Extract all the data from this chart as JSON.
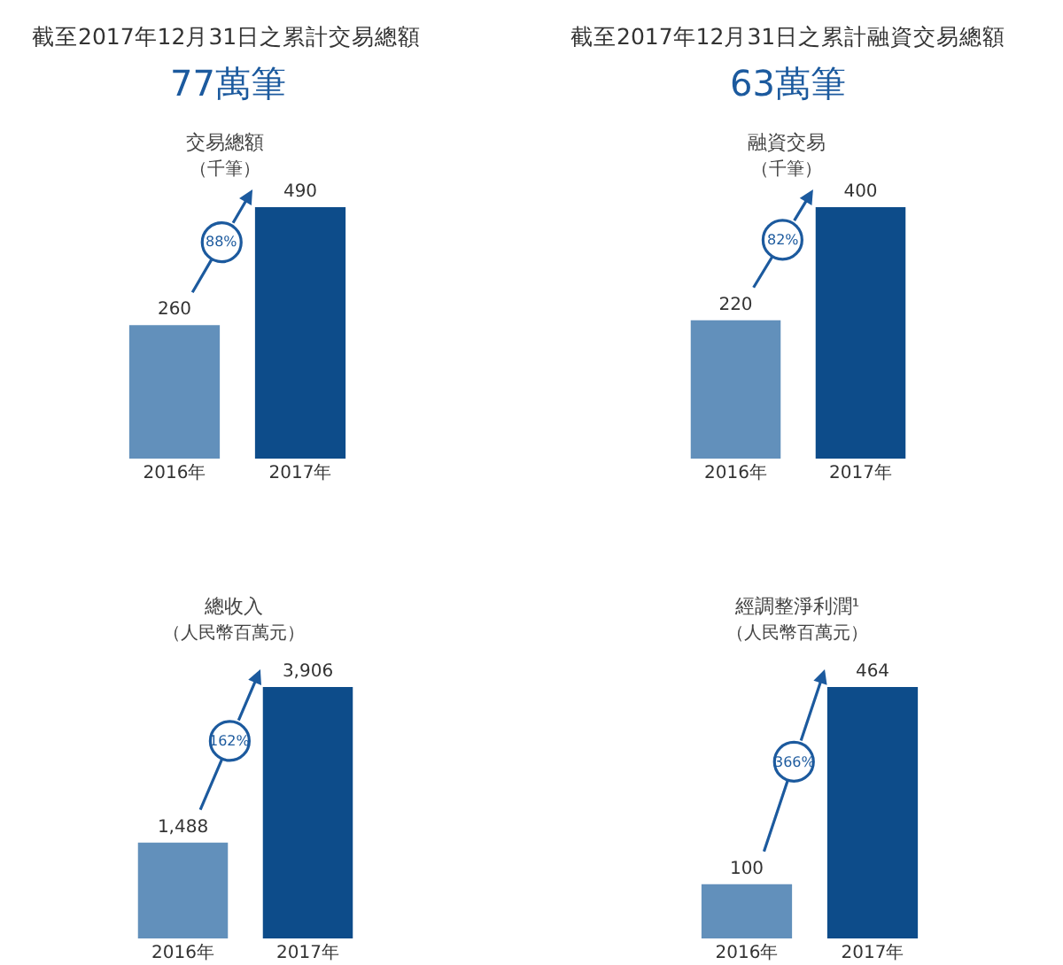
{
  "chart_data": [
    {
      "type": "bar",
      "title": "截至2017年12月31日之累計交易總額",
      "subtitle": "77萬筆",
      "ylabel": "交易總額（千筆）",
      "categories": [
        "2016年",
        "2017年"
      ],
      "values": [
        260,
        490
      ],
      "colors": [
        "#6290bb",
        "#0d4c8a"
      ],
      "data_labels": true,
      "annotations": [
        "88%"
      ]
    },
    {
      "type": "bar",
      "title": "截至2017年12月31日之累計融資交易總額",
      "subtitle": "63萬筆",
      "ylabel": "融資交易（千筆）",
      "categories": [
        "2016年",
        "2017年"
      ],
      "values": [
        220,
        400
      ],
      "colors": [
        "#6290bb",
        "#0d4c8a"
      ],
      "data_labels": true,
      "annotations": [
        "82%"
      ]
    },
    {
      "type": "bar",
      "ylabel": "總收入（人民幣百萬元）",
      "categories": [
        "2016年",
        "2017年"
      ],
      "values": [
        1488,
        3906
      ],
      "value_labels": [
        "1,488",
        "3,906"
      ],
      "colors": [
        "#6290bb",
        "#0d4c8a"
      ],
      "annotations": [
        "162%"
      ]
    },
    {
      "type": "bar",
      "ylabel": "經調整淨利潤¹（人民幣百萬元）",
      "categories": [
        "2016年",
        "2017年"
      ],
      "values": [
        100,
        464
      ],
      "colors": [
        "#6290bb",
        "#0d4c8a"
      ],
      "data_labels": true,
      "annotations": [
        "366%"
      ]
    }
  ]
}
